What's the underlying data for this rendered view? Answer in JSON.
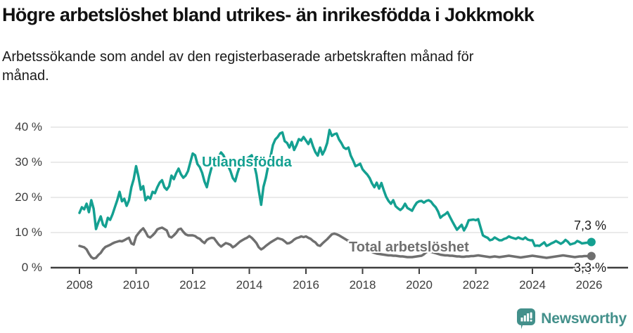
{
  "header": {
    "title": "Högre arbetslöshet bland utrikes- än inrikesfödda i Jokkmokk",
    "subtitle_line1": "Arbetssökande som andel av den registerbaserade arbetskraften månad för",
    "subtitle_line2": "månad."
  },
  "colors": {
    "accent_teal": "#14a091",
    "series_gray": "#6f6f6f",
    "axis": "#3e3e3e",
    "gridline": "#e4e4e4",
    "tick_text": "#3d3d3d",
    "logo_teal": "#43908b"
  },
  "chart_data": {
    "type": "line",
    "title": "Högre arbetslöshet bland utrikes- än inrikesfödda i Jokkmokk",
    "subtitle": "Arbetssökande som andel av den registerbaserade arbetskraften månad för månad.",
    "unit": "%",
    "frequency": "monthly",
    "start": {
      "year": 2008,
      "month": 1
    },
    "x_ticks": [
      2008,
      2010,
      2012,
      2014,
      2016,
      2018,
      2020,
      2022,
      2024,
      2026
    ],
    "y_ticks": [
      {
        "value": 0,
        "label": "0 %"
      },
      {
        "value": 10,
        "label": "10 %"
      },
      {
        "value": 20,
        "label": "20 %"
      },
      {
        "value": 30,
        "label": "30 %"
      },
      {
        "value": 40,
        "label": "40 %"
      }
    ],
    "ylim": [
      0,
      42
    ],
    "grid": true,
    "legend_position": "inline-labels",
    "series": [
      {
        "name": "Utlandsfödda",
        "color": "#14a091",
        "end_value_label": "7,3 %",
        "end_value": 7.3,
        "values": [
          15.6,
          17.2,
          16.6,
          18.2,
          15.8,
          19.2,
          16.8,
          11.0,
          12.9,
          14.6,
          12.2,
          11.6,
          14.2,
          13.6,
          15.2,
          17.2,
          19.2,
          21.6,
          18.9,
          19.6,
          17.6,
          19.2,
          22.9,
          25.2,
          28.9,
          25.9,
          22.2,
          23.2,
          19.2,
          20.2,
          19.6,
          21.6,
          21.2,
          22.9,
          24.2,
          24.9,
          22.9,
          22.2,
          23.2,
          26.2,
          25.2,
          26.9,
          28.2,
          26.6,
          25.6,
          26.2,
          27.5,
          30.0,
          32.5,
          32.0,
          29.5,
          28.6,
          27.0,
          24.5,
          22.9,
          26.0,
          28.5,
          30.0,
          31.0,
          31.5,
          32.8,
          32.0,
          30.5,
          29.0,
          27.5,
          25.5,
          24.6,
          27.0,
          29.0,
          30.8,
          30.2,
          31.0,
          31.5,
          32.0,
          29.5,
          26.5,
          22.0,
          17.9,
          23.0,
          25.6,
          29.0,
          31.6,
          34.9,
          36.5,
          37.2,
          38.2,
          38.5,
          36.0,
          35.5,
          34.2,
          35.8,
          33.5,
          34.9,
          36.6,
          36.2,
          37.2,
          36.2,
          35.2,
          36.6,
          34.5,
          32.9,
          31.9,
          34.2,
          32.2,
          33.5,
          35.5,
          39.2,
          37.5,
          38.0,
          38.2,
          36.5,
          35.5,
          34.2,
          33.8,
          34.2,
          31.9,
          30.5,
          28.9,
          29.2,
          29.6,
          28.0,
          27.2,
          26.5,
          25.5,
          24.0,
          22.9,
          24.2,
          22.5,
          24.1,
          22.0,
          20.2,
          19.0,
          18.2,
          19.2,
          17.5,
          16.9,
          16.4,
          17.0,
          18.2,
          17.0,
          16.6,
          16.2,
          17.5,
          18.5,
          18.9,
          19.0,
          18.5,
          19.0,
          19.2,
          18.8,
          17.9,
          17.2,
          16.0,
          14.2,
          14.8,
          15.2,
          15.8,
          14.5,
          13.2,
          12.0,
          10.8,
          11.5,
          12.2,
          10.6,
          11.8,
          13.5,
          13.6,
          13.7,
          13.5,
          13.8,
          11.5,
          9.2,
          8.8,
          8.5,
          7.8,
          8.0,
          8.6,
          8.2,
          7.8,
          7.8,
          8.2,
          8.4,
          8.9,
          8.6,
          8.4,
          8.2,
          8.6,
          8.3,
          8.1,
          8.6,
          8.0,
          7.8,
          7.8,
          6.2,
          6.3,
          6.2,
          6.7,
          7.2,
          6.2,
          6.5,
          6.9,
          7.2,
          7.6,
          7.2,
          6.8,
          7.2,
          7.9,
          7.4,
          6.6,
          6.8,
          7.0,
          7.6,
          7.3,
          6.9,
          7.0,
          7.1,
          7.1,
          7.3
        ]
      },
      {
        "name": "Total arbetslöshet",
        "color": "#6f6f6f",
        "end_value_label": "3,3 %",
        "end_value": 3.3,
        "values": [
          6.2,
          6.0,
          5.8,
          5.2,
          4.0,
          3.0,
          2.6,
          2.8,
          3.6,
          4.2,
          5.2,
          5.9,
          6.2,
          6.5,
          6.9,
          7.2,
          7.4,
          7.6,
          7.5,
          7.8,
          8.2,
          8.5,
          6.9,
          6.6,
          8.9,
          9.8,
          10.6,
          11.2,
          10.2,
          8.9,
          8.6,
          9.2,
          9.9,
          10.9,
          11.2,
          11.4,
          11.0,
          10.6,
          8.9,
          8.6,
          9.2,
          9.9,
          10.9,
          11.1,
          10.2,
          9.5,
          9.2,
          9.2,
          9.2,
          9.0,
          8.5,
          8.2,
          7.5,
          7.0,
          7.9,
          8.3,
          8.5,
          8.4,
          7.5,
          6.6,
          6.0,
          6.5,
          7.0,
          6.8,
          6.5,
          5.8,
          6.2,
          6.8,
          7.4,
          7.8,
          8.2,
          8.5,
          9.0,
          8.5,
          7.8,
          7.0,
          5.8,
          5.2,
          5.6,
          6.2,
          6.7,
          7.2,
          7.6,
          8.0,
          8.4,
          8.2,
          8.0,
          7.5,
          6.9,
          7.0,
          7.4,
          8.0,
          8.4,
          8.6,
          8.9,
          8.7,
          8.9,
          8.5,
          8.2,
          7.6,
          7.2,
          6.4,
          6.2,
          6.9,
          7.5,
          8.1,
          8.8,
          9.5,
          9.7,
          9.5,
          9.2,
          8.8,
          8.4,
          8.0,
          7.6,
          7.2,
          6.8,
          6.4,
          6.0,
          5.6,
          5.4,
          5.2,
          5.0,
          4.8,
          4.5,
          4.2,
          4.0,
          3.9,
          3.8,
          3.7,
          3.6,
          3.5,
          3.5,
          3.4,
          3.4,
          3.3,
          3.2,
          3.2,
          3.1,
          3.0,
          3.0,
          3.0,
          3.1,
          3.2,
          3.3,
          3.4,
          3.8,
          4.4,
          4.6,
          4.5,
          4.3,
          4.1,
          3.9,
          3.7,
          3.6,
          3.5,
          3.5,
          3.4,
          3.4,
          3.3,
          3.2,
          3.2,
          3.1,
          3.1,
          3.2,
          3.2,
          3.3,
          3.3,
          3.4,
          3.5,
          3.4,
          3.3,
          3.2,
          3.1,
          3.0,
          3.1,
          3.2,
          3.1,
          3.0,
          3.1,
          3.2,
          3.3,
          3.4,
          3.3,
          3.2,
          3.1,
          3.0,
          2.9,
          3.0,
          3.1,
          3.2,
          3.3,
          3.4,
          3.3,
          3.2,
          3.1,
          3.0,
          2.9,
          2.8,
          2.9,
          3.0,
          3.1,
          3.2,
          3.3,
          3.4,
          3.5,
          3.4,
          3.3,
          3.2,
          3.1,
          3.0,
          3.1,
          3.2,
          3.2,
          3.3,
          3.3,
          3.2,
          3.3
        ]
      }
    ]
  },
  "labels": {
    "series_high": "Utlandsfödda",
    "series_low": "Total arbetslöshet",
    "end_high": "7,3 %",
    "end_low": "3,3 %"
  },
  "footer": {
    "brand": "Newsworthy"
  }
}
